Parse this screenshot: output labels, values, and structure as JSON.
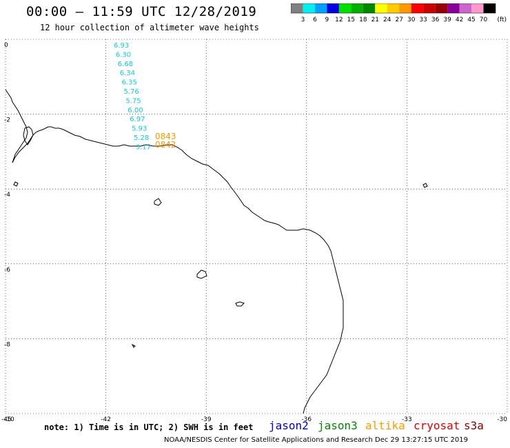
{
  "header": {
    "title": "00:00 – 11:59 UTC 12/28/2019",
    "subtitle": "12 hour collection of altimeter wave heights"
  },
  "colorbar": {
    "unit": "(ft)",
    "labels": [
      "3",
      "6",
      "9",
      "12",
      "15",
      "18",
      "21",
      "24",
      "27",
      "30",
      "33",
      "36",
      "39",
      "42",
      "45",
      "70"
    ],
    "colors": [
      "#808080",
      "#00f0f0",
      "#00a0ff",
      "#0000e0",
      "#00e000",
      "#00b000",
      "#008800",
      "#ffff00",
      "#ffcc00",
      "#ff9900",
      "#ff0000",
      "#cc0000",
      "#990000",
      "#880099",
      "#cc66cc",
      "#ff99cc",
      "#000000"
    ]
  },
  "map": {
    "lon_range": [
      -45,
      -30
    ],
    "lat_range": [
      -10,
      0
    ],
    "x_ticks": [
      "-45",
      "-42",
      "-39",
      "-36",
      "-33",
      "-30"
    ],
    "y_ticks": [
      "0",
      "-2",
      "-4",
      "-6",
      "-8",
      "-10"
    ],
    "coast_color": "#000000"
  },
  "track": {
    "color": "#10c8d8",
    "values": [
      "6.93",
      "6.30",
      "6.68",
      "6.34",
      "6.35",
      "5.76",
      "5.75",
      "6.00",
      "6.97",
      "5.93",
      "5.28",
      "3.17"
    ]
  },
  "time_labels": {
    "color": "#ff9900",
    "items": [
      "0843",
      "0842"
    ]
  },
  "footer": {
    "note": "note: 1) Time is in UTC; 2) SWH is in feet",
    "satellites": [
      {
        "name": "jason2",
        "color": "#0000cc"
      },
      {
        "name": "jason3",
        "color": "#008800"
      },
      {
        "name": "altika",
        "color": "#ff9900"
      },
      {
        "name": "cryosat",
        "color": "#dd0000"
      },
      {
        "name": "s3a",
        "color": "#880000"
      }
    ],
    "credit": "NOAA/NESDIS Center for Satellite Applications and Research    Dec 29 13:27:15 UTC 2019"
  }
}
